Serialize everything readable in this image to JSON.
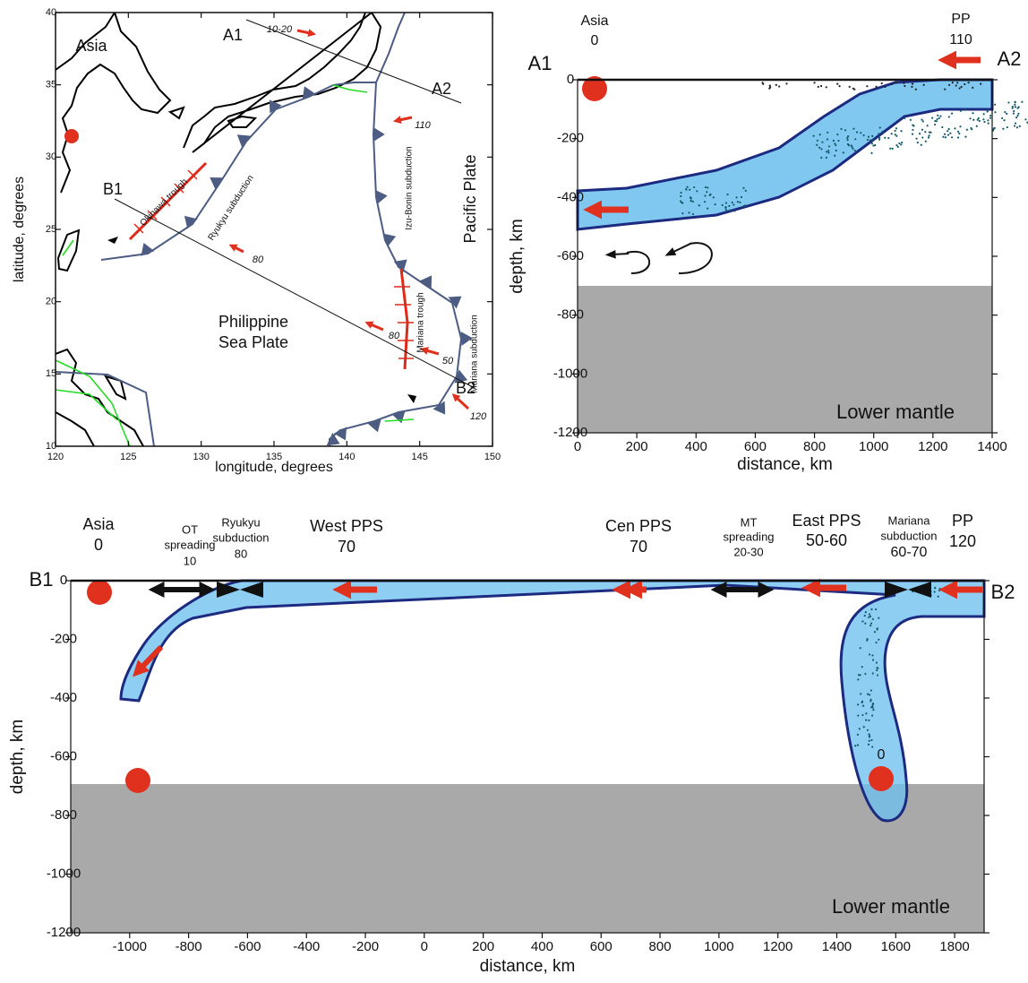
{
  "chart_data": [
    {
      "type": "map",
      "xlabel": "longitude, degrees",
      "ylabel": "latitude, degrees",
      "xlim": [
        120,
        150
      ],
      "ylim": [
        10,
        40
      ],
      "xticks": [
        120,
        125,
        130,
        135,
        140,
        145,
        150
      ],
      "yticks": [
        10,
        15,
        20,
        25,
        30,
        35,
        40
      ],
      "labels": {
        "asia": "Asia",
        "a1": "A1",
        "a2": "A2",
        "b1": "B1",
        "b2": "B2",
        "v_a": "10-20",
        "v_izu": "110",
        "v_pps": "80",
        "v_mt_w": "80",
        "v_mt_e": "50",
        "v_pp": "120",
        "okinawa": "Okinawa trough",
        "ryukyu": "Ryukyu subduction",
        "izu": "Izu-Bonin subduction",
        "mariana_trough": "Mariana trough",
        "mariana_sub": "Mariana subduction",
        "pacific": "Pacific Plate",
        "pps_1": "Philippine",
        "pps_2": "Sea Plate"
      }
    },
    {
      "type": "section",
      "xlabel": "distance, km",
      "ylabel": "depth, km",
      "xlim": [
        0,
        1400
      ],
      "ylim": [
        -1200,
        0
      ],
      "xticks": [
        0,
        200,
        400,
        600,
        800,
        1000,
        1200,
        1400
      ],
      "yticks": [
        -1200,
        -1000,
        -800,
        -600,
        -400,
        -200,
        0
      ],
      "labels": {
        "a1": "A1",
        "a2": "A2",
        "asia": "Asia",
        "asia_v": "0",
        "pp": "PP",
        "pp_v": "110",
        "lower_mantle": "Lower mantle"
      }
    },
    {
      "type": "section",
      "xlabel": "distance, km",
      "ylabel": "depth, km",
      "xlim": [
        -1200,
        1900
      ],
      "ylim": [
        -1200,
        0
      ],
      "xticks": [
        -1000,
        -800,
        -600,
        -400,
        -200,
        0,
        200,
        400,
        600,
        800,
        1000,
        1200,
        1400,
        1600,
        1800
      ],
      "yticks": [
        -1200,
        -1000,
        -800,
        -600,
        -400,
        -200,
        0
      ],
      "labels": {
        "b1": "B1",
        "b2": "B2",
        "asia": "Asia",
        "asia_v": "0",
        "ot_1": "OT",
        "ot_2": "spreading",
        "ot_v": "10",
        "ry_1": "Ryukyu",
        "ry_2": "subduction",
        "ry_v": "80",
        "west": "West PPS",
        "west_v": "70",
        "cen": "Cen PPS",
        "cen_v": "70",
        "mt_1": "MT",
        "mt_2": "spreading",
        "mt_v": "20-30",
        "east": "East PPS",
        "east_v": "50-60",
        "ma_1": "Mariana",
        "ma_2": "subduction",
        "ma_v": "60-70",
        "pp": "PP",
        "pp_v": "120",
        "slab_v": "0",
        "lower_mantle": "Lower mantle"
      }
    }
  ]
}
